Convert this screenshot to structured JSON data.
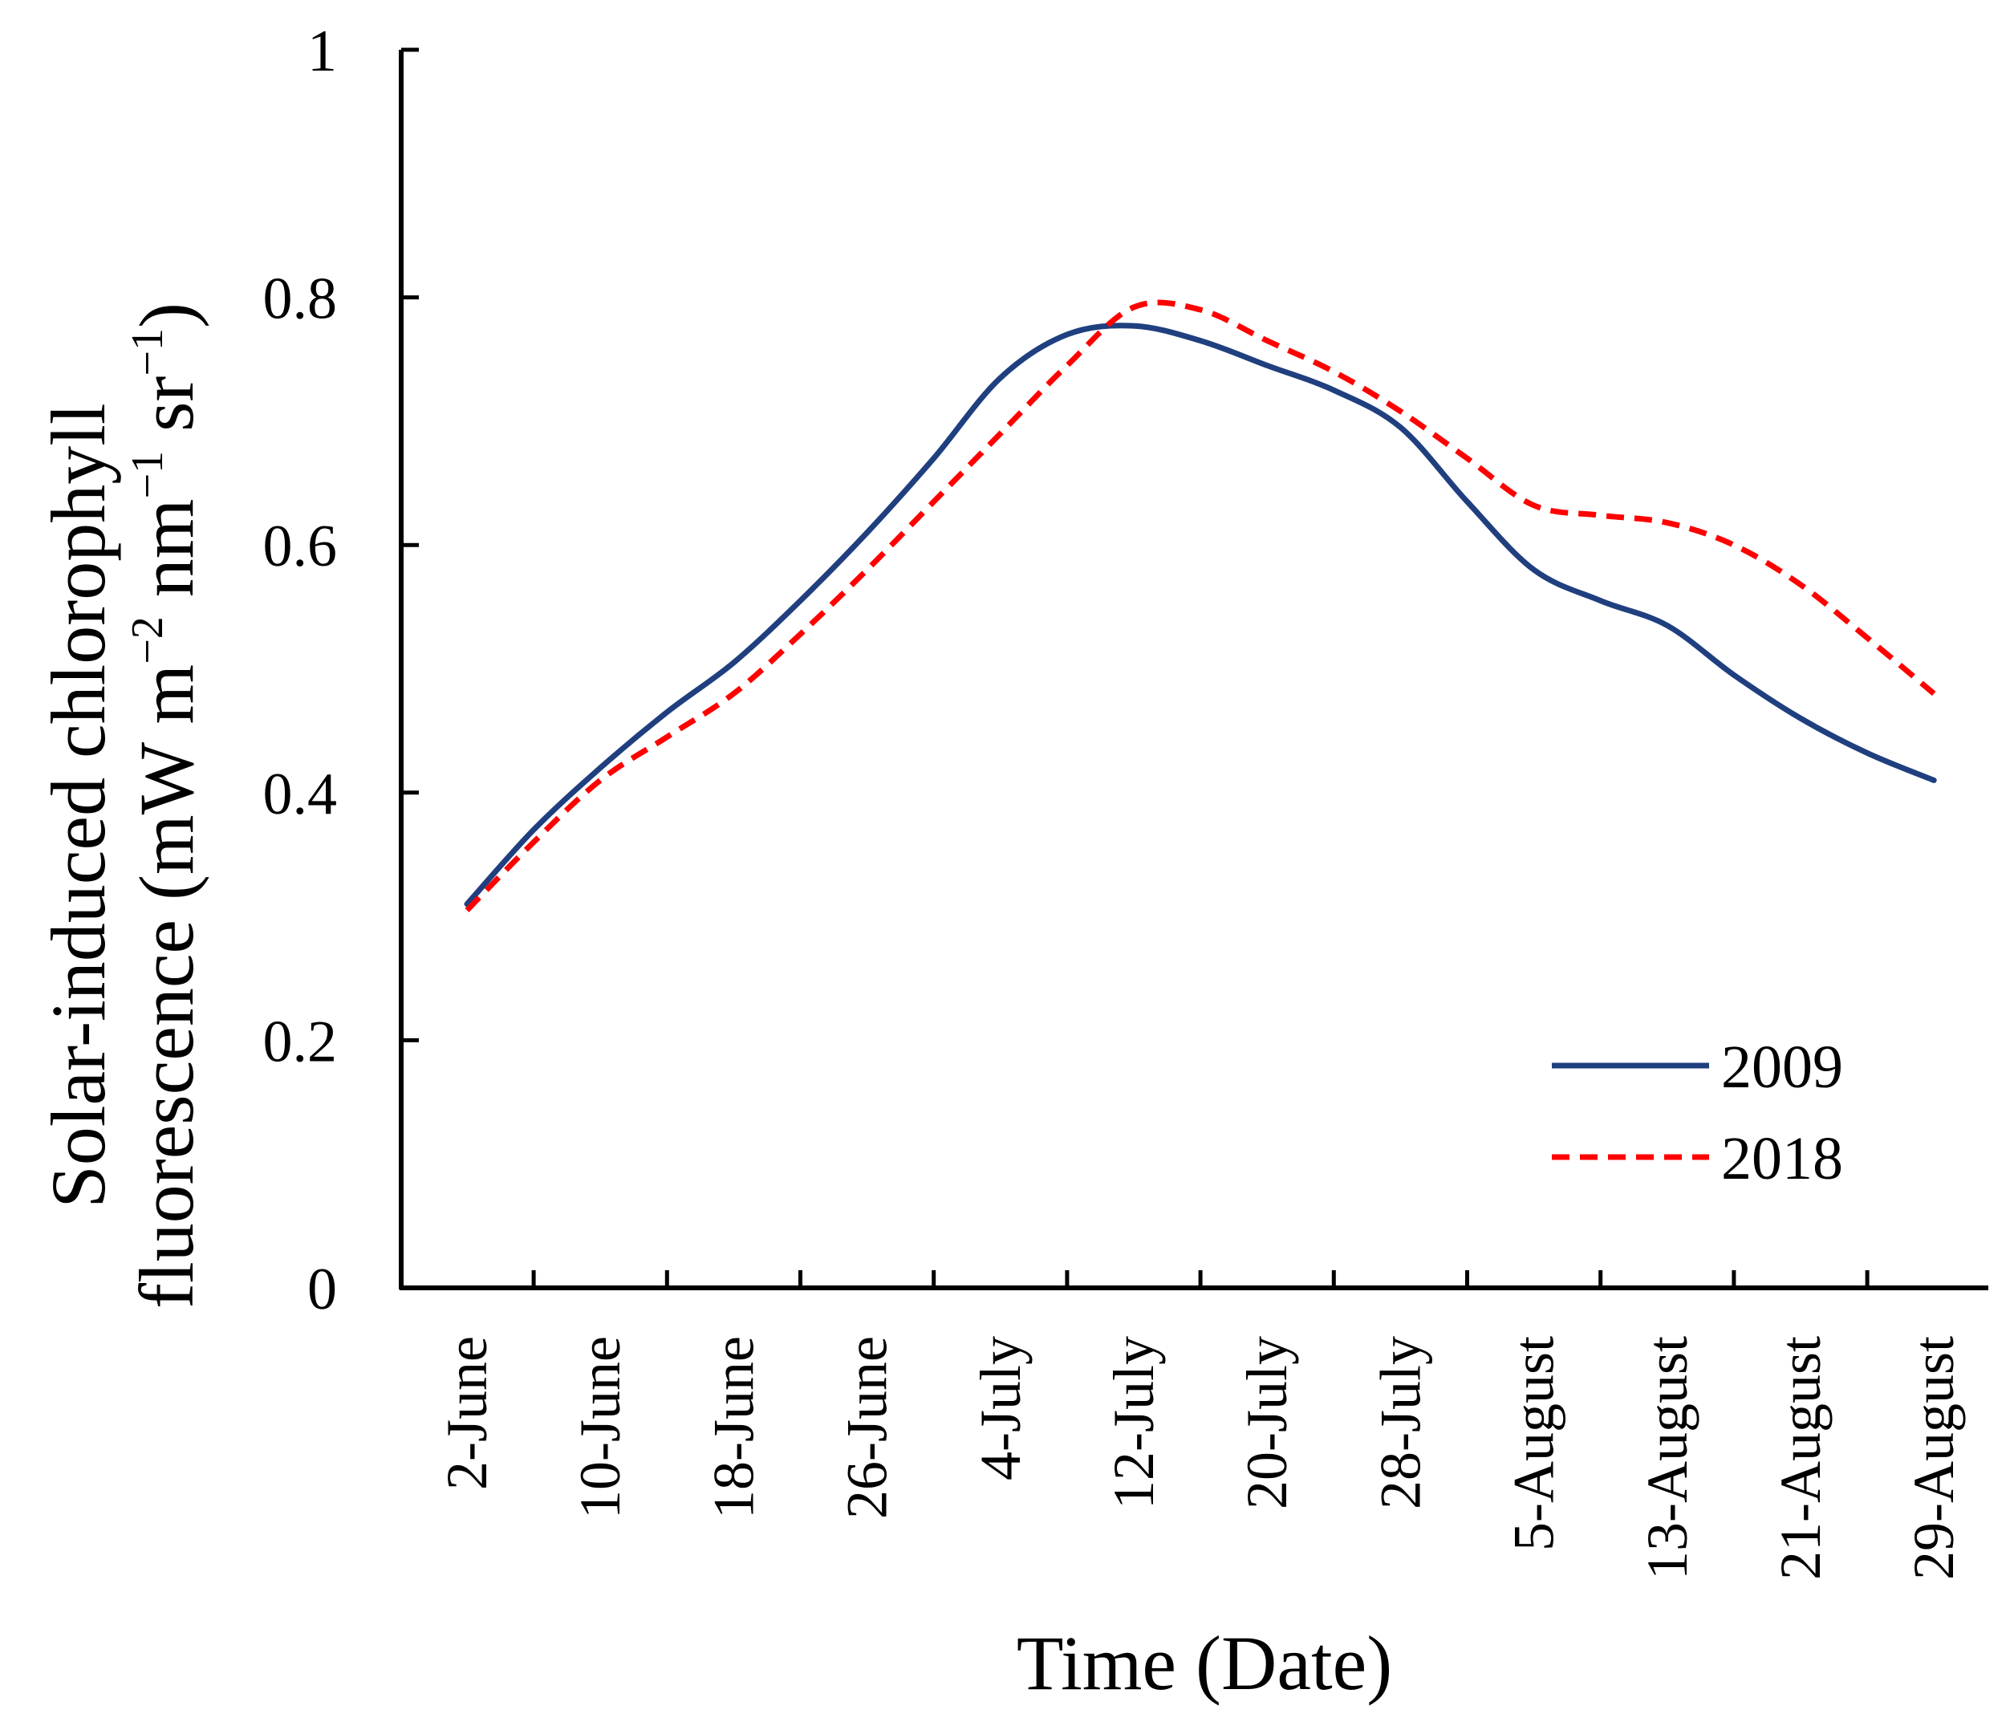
{
  "chart_data": {
    "type": "line",
    "title": "",
    "xlabel": "Time (Date)",
    "ylabel": {
      "line1": "Solar-induced chlorophyll",
      "line2_prefix": "fluorescence (mW m",
      "exp1": "−2",
      "mid1": " nm",
      "exp2": "−1",
      "mid2": " sr",
      "exp3": "−1",
      "suffix": ")"
    },
    "ylim": [
      0,
      1
    ],
    "yticks": [
      "0",
      "0.2",
      "0.4",
      "0.6",
      "0.8",
      "1"
    ],
    "ytick_values": [
      0,
      0.2,
      0.4,
      0.6,
      0.8,
      1
    ],
    "categories": [
      "2-June",
      "10-June",
      "18-June",
      "26-June",
      "4-July",
      "12-July",
      "20-July",
      "28-July",
      "5-August",
      "13-August",
      "21-August",
      "29-August"
    ],
    "x_positions": [
      0,
      1,
      2,
      3,
      4,
      5,
      6,
      7,
      8,
      9,
      10,
      11
    ],
    "series": [
      {
        "name": "2009",
        "color": "#1f3f7f",
        "dash": "solid",
        "x": [
          0,
          0.5,
          1,
          1.5,
          2,
          2.5,
          3,
          3.5,
          4,
          4.5,
          5,
          5.5,
          6,
          6.5,
          7,
          7.5,
          8,
          8.5,
          9,
          9.5,
          10,
          10.5,
          11
        ],
        "values": [
          0.31,
          0.37,
          0.42,
          0.465,
          0.505,
          0.555,
          0.61,
          0.67,
          0.735,
          0.77,
          0.777,
          0.765,
          0.745,
          0.725,
          0.695,
          0.635,
          0.58,
          0.555,
          0.535,
          0.495,
          0.46,
          0.432,
          0.41
        ]
      },
      {
        "name": "2018",
        "color": "#ff0000",
        "dash": "dashed",
        "x": [
          0,
          0.5,
          1,
          1.5,
          2,
          2.5,
          3,
          3.5,
          4,
          4.5,
          5,
          5.5,
          6,
          6.5,
          7,
          7.5,
          8,
          8.5,
          9,
          9.5,
          10,
          10.5,
          11
        ],
        "values": [
          0.305,
          0.36,
          0.41,
          0.445,
          0.48,
          0.528,
          0.58,
          0.635,
          0.69,
          0.745,
          0.792,
          0.79,
          0.765,
          0.74,
          0.708,
          0.67,
          0.632,
          0.624,
          0.618,
          0.6,
          0.568,
          0.525,
          0.48
        ]
      }
    ],
    "legend": {
      "position": "bottom-right",
      "entries": [
        "2009",
        "2018"
      ]
    },
    "grid": false
  }
}
